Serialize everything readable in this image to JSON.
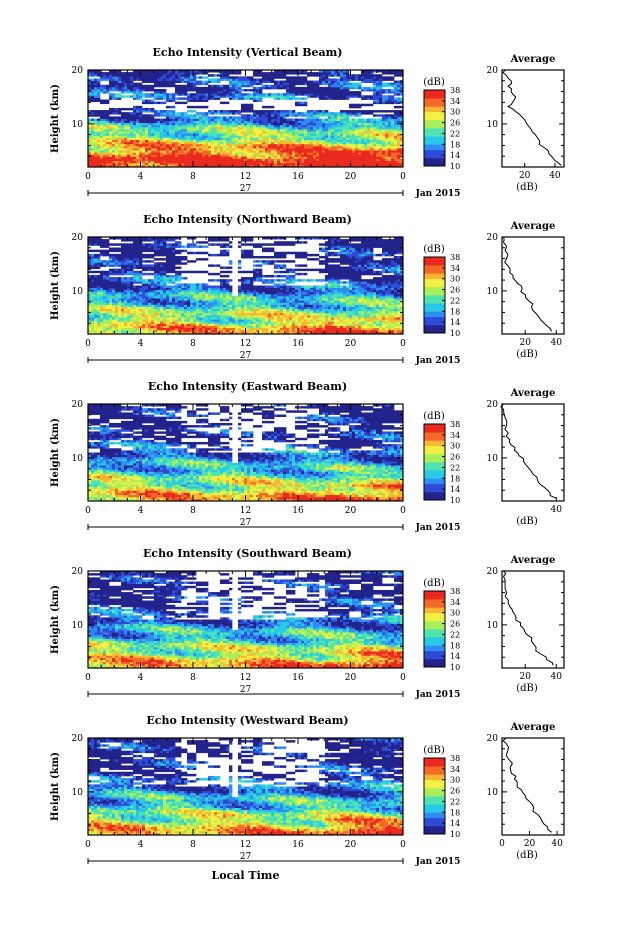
{
  "figure": {
    "xlabel": "Local Time",
    "ylabel": "Height (km)",
    "day_label": "27",
    "date_label": "Jan 2015",
    "x_ticks": [
      "0",
      "4",
      "8",
      "12",
      "16",
      "20",
      "0"
    ],
    "y_ticks": [
      "10",
      "20"
    ],
    "colorbar_unit": "(dB)",
    "colorbar_ticks": [
      "10",
      "14",
      "18",
      "22",
      "26",
      "30",
      "34",
      "38"
    ],
    "colormap": [
      "#23238c",
      "#2e4bd8",
      "#2f8cf0",
      "#27c9e9",
      "#4fe3b0",
      "#a8ef5c",
      "#f3f044",
      "#f8b632",
      "#f36a28",
      "#ea2a1f"
    ],
    "average_title": "Average",
    "average_xlabel": "(dB)"
  },
  "chart_data": [
    {
      "type": "heatmap",
      "title": "Echo Intensity (Vertical Beam)",
      "xlabel": "Local Time",
      "ylabel": "Height (km)",
      "xlim": [
        0,
        24
      ],
      "ylim": [
        2,
        20
      ],
      "clim": [
        10,
        38
      ],
      "x": "hours",
      "y": "km",
      "base_profile": [
        [
          2,
          37
        ],
        [
          4,
          36
        ],
        [
          6,
          30
        ],
        [
          8,
          24
        ],
        [
          10,
          20
        ],
        [
          11,
          16
        ],
        [
          12,
          13
        ],
        [
          13.5,
          8
        ],
        [
          15,
          15
        ],
        [
          16,
          13
        ],
        [
          18,
          12
        ],
        [
          20,
          11
        ]
      ],
      "average_profile": {
        "xlim": [
          5,
          46
        ],
        "x_ticks": [
          20,
          40
        ],
        "ylim": [
          2,
          20
        ],
        "points": [
          [
            44,
            2.3
          ],
          [
            40,
            3.2
          ],
          [
            36,
            4.5
          ],
          [
            33,
            5.6
          ],
          [
            30,
            6.8
          ],
          [
            27,
            8.0
          ],
          [
            24,
            9.1
          ],
          [
            21,
            10.2
          ],
          [
            18,
            11.3
          ],
          [
            14,
            12.3
          ],
          [
            9,
            13.2
          ],
          [
            12,
            14.0
          ],
          [
            14,
            15.0
          ],
          [
            11,
            16.0
          ],
          [
            9,
            17.0
          ],
          [
            11,
            18.0
          ],
          [
            8,
            19.0
          ],
          [
            7,
            20.0
          ]
        ]
      }
    },
    {
      "type": "heatmap",
      "title": "Echo Intensity (Northward Beam)",
      "xlabel": "Local Time",
      "ylabel": "Height (km)",
      "xlim": [
        0,
        24
      ],
      "ylim": [
        2,
        20
      ],
      "clim": [
        10,
        38
      ],
      "base_profile": [
        [
          2,
          32
        ],
        [
          4,
          28
        ],
        [
          6,
          24
        ],
        [
          8,
          20
        ],
        [
          10,
          17
        ],
        [
          12,
          14
        ],
        [
          14,
          11
        ],
        [
          16,
          10
        ],
        [
          18,
          10
        ],
        [
          20,
          10
        ]
      ],
      "average_profile": {
        "xlim": [
          5,
          45
        ],
        "x_ticks": [
          20,
          40
        ],
        "ylim": [
          2,
          20
        ],
        "points": [
          [
            37,
            2.5
          ],
          [
            34,
            3.5
          ],
          [
            30,
            4.6
          ],
          [
            27,
            5.8
          ],
          [
            24,
            7.0
          ],
          [
            22,
            8.2
          ],
          [
            20,
            9.3
          ],
          [
            18,
            10.4
          ],
          [
            15,
            11.4
          ],
          [
            12,
            12.4
          ],
          [
            10,
            13.4
          ],
          [
            9,
            14.6
          ],
          [
            8,
            16.0
          ],
          [
            7,
            17.5
          ],
          [
            6,
            19.0
          ],
          [
            6,
            20.0
          ]
        ]
      }
    },
    {
      "type": "heatmap",
      "title": "Echo Intensity (Eastward Beam)",
      "xlabel": "Local Time",
      "ylabel": "Height (km)",
      "xlim": [
        0,
        24
      ],
      "ylim": [
        2,
        20
      ],
      "clim": [
        10,
        38
      ],
      "base_profile": [
        [
          2,
          32
        ],
        [
          4,
          28
        ],
        [
          6,
          24
        ],
        [
          8,
          20
        ],
        [
          10,
          17
        ],
        [
          12,
          14
        ],
        [
          14,
          11
        ],
        [
          16,
          10
        ],
        [
          18,
          10
        ],
        [
          20,
          10
        ]
      ],
      "average_profile": {
        "xlim": [
          5,
          45
        ],
        "x_ticks": [
          40
        ],
        "ylim": [
          2,
          20
        ],
        "points": [
          [
            40,
            2.5
          ],
          [
            36,
            3.5
          ],
          [
            32,
            4.6
          ],
          [
            28,
            5.8
          ],
          [
            25,
            7.0
          ],
          [
            22,
            8.2
          ],
          [
            19,
            9.3
          ],
          [
            16,
            10.4
          ],
          [
            13,
            11.4
          ],
          [
            11,
            12.4
          ],
          [
            10,
            13.4
          ],
          [
            9,
            14.6
          ],
          [
            8,
            16.0
          ],
          [
            7,
            17.5
          ],
          [
            6,
            19.0
          ],
          [
            6,
            20.0
          ]
        ]
      }
    },
    {
      "type": "heatmap",
      "title": "Echo Intensity (Southward Beam)",
      "xlabel": "Local Time",
      "ylabel": "Height (km)",
      "xlim": [
        0,
        24
      ],
      "ylim": [
        2,
        20
      ],
      "clim": [
        10,
        38
      ],
      "base_profile": [
        [
          2,
          32
        ],
        [
          4,
          28
        ],
        [
          6,
          24
        ],
        [
          8,
          20
        ],
        [
          10,
          17
        ],
        [
          12,
          14
        ],
        [
          14,
          11
        ],
        [
          16,
          10
        ],
        [
          18,
          10
        ],
        [
          20,
          10
        ]
      ],
      "average_profile": {
        "xlim": [
          5,
          45
        ],
        "x_ticks": [
          20,
          40
        ],
        "ylim": [
          2,
          20
        ],
        "points": [
          [
            38,
            2.5
          ],
          [
            34,
            3.5
          ],
          [
            30,
            4.6
          ],
          [
            27,
            5.8
          ],
          [
            24,
            7.0
          ],
          [
            21,
            8.2
          ],
          [
            19,
            9.3
          ],
          [
            17,
            10.4
          ],
          [
            14,
            11.4
          ],
          [
            12,
            12.4
          ],
          [
            10,
            13.4
          ],
          [
            9,
            14.6
          ],
          [
            8,
            16.0
          ],
          [
            7,
            17.5
          ],
          [
            6,
            19.0
          ],
          [
            6,
            20.0
          ]
        ]
      }
    },
    {
      "type": "heatmap",
      "title": "Echo Intensity (Westward Beam)",
      "xlabel": "Local Time",
      "ylabel": "Height (km)",
      "xlim": [
        0,
        24
      ],
      "ylim": [
        2,
        20
      ],
      "clim": [
        10,
        38
      ],
      "base_profile": [
        [
          2,
          32
        ],
        [
          4,
          28
        ],
        [
          6,
          24
        ],
        [
          8,
          20
        ],
        [
          10,
          17
        ],
        [
          12,
          14
        ],
        [
          14,
          11
        ],
        [
          16,
          10
        ],
        [
          18,
          10
        ],
        [
          20,
          10
        ]
      ],
      "average_profile": {
        "xlim": [
          0,
          45
        ],
        "x_ticks": [
          0,
          20,
          40
        ],
        "ylim": [
          2,
          20
        ],
        "points": [
          [
            36,
            2.5
          ],
          [
            33,
            3.5
          ],
          [
            29,
            4.6
          ],
          [
            26,
            5.8
          ],
          [
            23,
            7.0
          ],
          [
            20,
            8.2
          ],
          [
            17,
            9.3
          ],
          [
            14,
            10.4
          ],
          [
            11,
            11.4
          ],
          [
            9,
            12.4
          ],
          [
            7,
            13.4
          ],
          [
            6,
            14.6
          ],
          [
            5,
            16.0
          ],
          [
            4,
            17.5
          ],
          [
            3,
            19.0
          ],
          [
            3,
            20.0
          ]
        ]
      }
    }
  ]
}
